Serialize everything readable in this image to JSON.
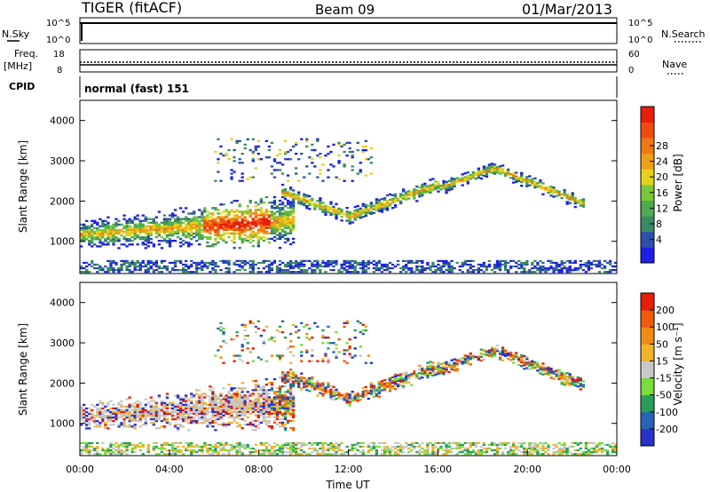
{
  "header": {
    "radar": "TIGER (fitACF)",
    "beam": "Beam 09",
    "date": "01/Mar/2013"
  },
  "strips": {
    "nsky_label": "N.Sky",
    "nsky_ticks": [
      "10^5",
      "10^0"
    ],
    "nsearch_label": "N.Search",
    "nsearch_ticks": [
      "10^5",
      "10^0"
    ],
    "freq_label_line1": "Freq.",
    "freq_label_line2": "[MHz]",
    "freq_ticks": [
      "18",
      "8"
    ],
    "nave_label": "Nave",
    "nave_ticks": [
      "60",
      "0"
    ],
    "cpid_label": "CPID",
    "cpid_value": "normal (fast) 151"
  },
  "chart_data": [
    {
      "type": "heatmap",
      "name": "power",
      "ylabel": "Slant Range [km]",
      "ylim": [
        200,
        4500
      ],
      "yticks": [
        "1000",
        "2000",
        "3000",
        "4000"
      ],
      "xlim": [
        0,
        24
      ],
      "colorbar": {
        "label": "Power [dB]",
        "ticks": [
          "4",
          "8",
          "12",
          "16",
          "20",
          "24",
          "28"
        ],
        "colors": [
          "#1e1ee6",
          "#2d50aa",
          "#3c8a64",
          "#50aa50",
          "#78c83c",
          "#e6d21e",
          "#f0a018",
          "#f07814",
          "#f04b0f",
          "#e61e0a"
        ]
      }
    },
    {
      "type": "heatmap",
      "name": "velocity",
      "ylabel": "Slant Range [km]",
      "ylim": [
        200,
        4500
      ],
      "yticks": [
        "1000",
        "2000",
        "3000",
        "4000"
      ],
      "xlabel": "Time UT",
      "xticks": [
        "00:00",
        "04:00",
        "08:00",
        "12:00",
        "16:00",
        "20:00",
        "00:00"
      ],
      "colorbar": {
        "label": "Velocity [m s⁻¹]",
        "ticks": [
          "200",
          "100",
          "50",
          "15",
          "-15",
          "-50",
          "-100",
          "-200"
        ],
        "colors": [
          "#2832c8",
          "#2864b4",
          "#28a05a",
          "#78dc3c",
          "#c8c8c8",
          "#f0b428",
          "#f08c14",
          "#f05a0a",
          "#e61e0a"
        ]
      }
    }
  ]
}
